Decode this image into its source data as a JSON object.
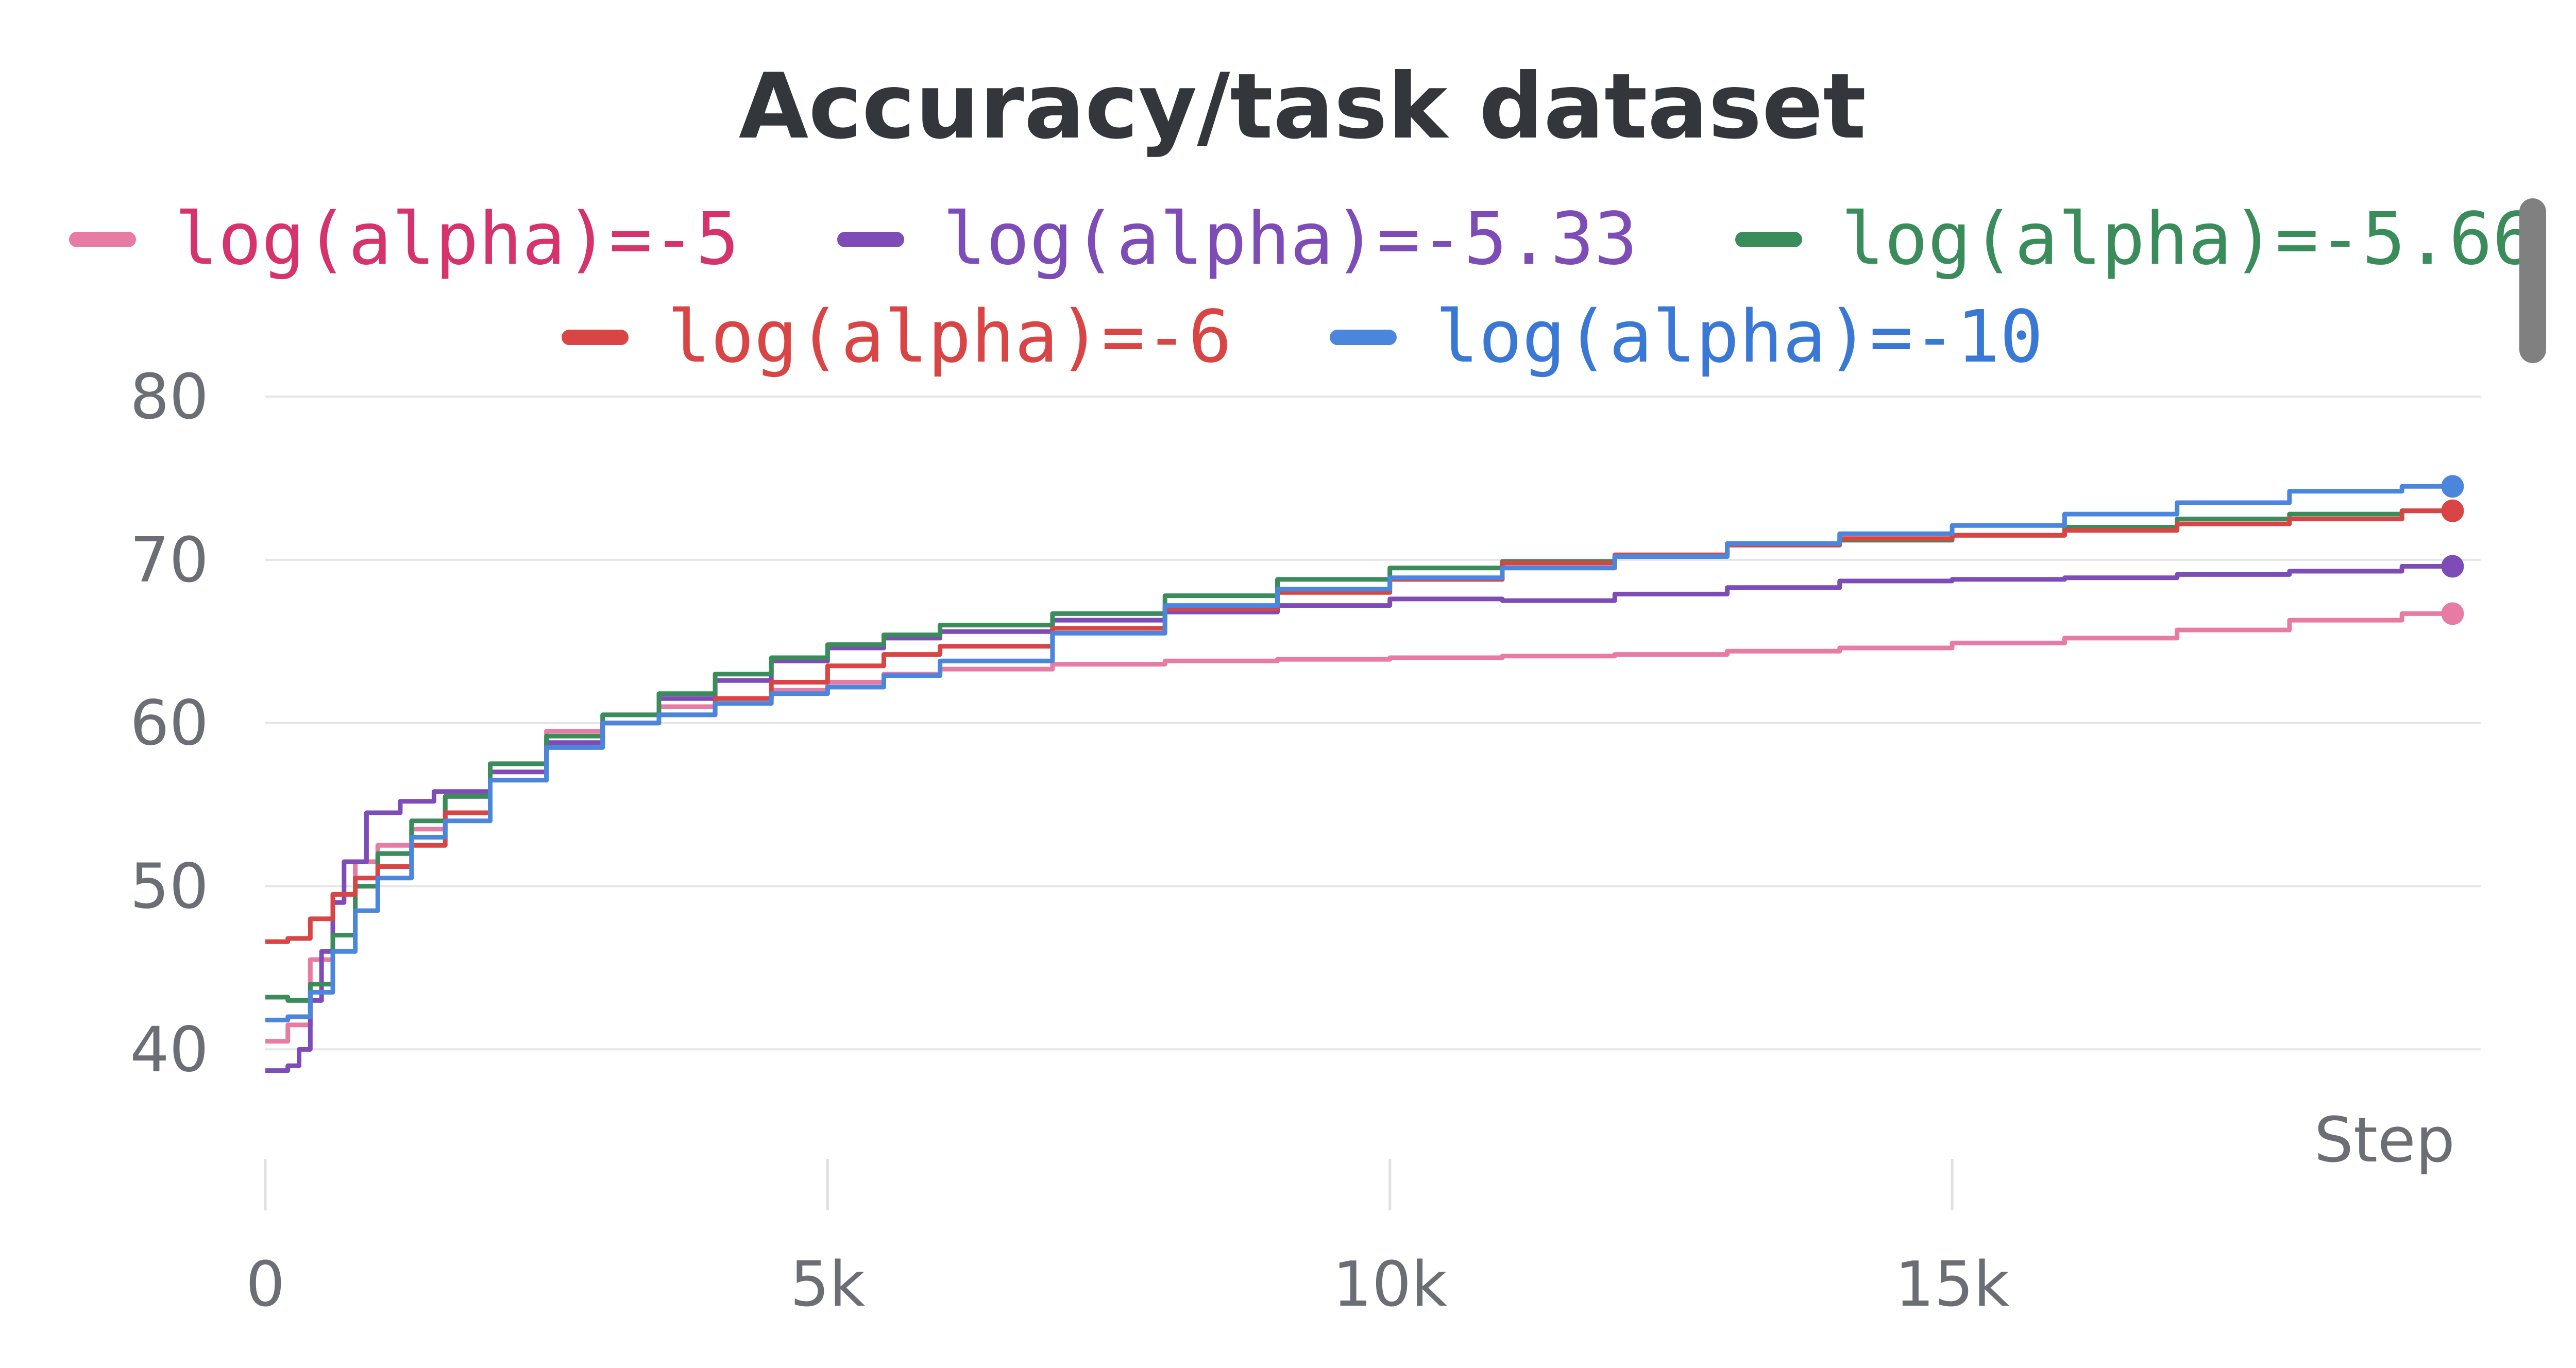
{
  "chart_data": {
    "type": "line",
    "title": "Accuracy/task dataset",
    "xlabel": "Step",
    "ylabel": "",
    "xlim": [
      0,
      19700
    ],
    "ylim": [
      35.5,
      80
    ],
    "x_ticks": [
      0,
      5000,
      10000,
      15000
    ],
    "x_tick_labels": [
      "0",
      "5k",
      "10k",
      "15k"
    ],
    "y_ticks": [
      40,
      50,
      60,
      70,
      80
    ],
    "y_tick_labels": [
      "40",
      "50",
      "60",
      "70",
      "80"
    ],
    "grid": true,
    "legend_position": "top",
    "series": [
      {
        "name": "log(alpha)=-5",
        "color": "#e87ba4",
        "label_color": "#d6336c",
        "x": [
          0,
          200,
          400,
          600,
          800,
          1000,
          1300,
          1600,
          2000,
          2500,
          3000,
          3500,
          4000,
          4500,
          5000,
          5500,
          6000,
          7000,
          8000,
          9000,
          10000,
          11000,
          12000,
          13000,
          14000,
          15000,
          16000,
          17000,
          18000,
          19000
        ],
        "y": [
          40.5,
          41.5,
          45.5,
          49.5,
          51.5,
          52.5,
          53.5,
          55.5,
          57.5,
          59.5,
          60.5,
          61.0,
          61.5,
          62.0,
          62.5,
          63.0,
          63.3,
          63.6,
          63.8,
          63.9,
          64.0,
          64.1,
          64.2,
          64.4,
          64.6,
          64.9,
          65.2,
          65.7,
          66.3,
          66.7
        ]
      },
      {
        "name": "log(alpha)=-5.33",
        "color": "#7e4cb7",
        "label_color": "#7e4cb7",
        "x": [
          0,
          200,
          300,
          400,
          500,
          600,
          700,
          900,
          1200,
          1500,
          2000,
          2500,
          3000,
          3500,
          4000,
          4500,
          5000,
          5500,
          6000,
          7000,
          8000,
          9000,
          10000,
          11000,
          12000,
          13000,
          14000,
          15000,
          16000,
          17000,
          18000,
          19000
        ],
        "y": [
          38.7,
          39.0,
          40.0,
          43.0,
          46.0,
          49.0,
          51.5,
          54.5,
          55.2,
          55.8,
          57.0,
          58.8,
          60.0,
          61.5,
          62.6,
          63.8,
          64.6,
          65.2,
          65.6,
          66.3,
          66.8,
          67.2,
          67.6,
          67.5,
          67.9,
          68.3,
          68.7,
          68.8,
          68.9,
          69.1,
          69.3,
          69.6
        ]
      },
      {
        "name": "log(alpha)=-5.66",
        "color": "#3a8d5a",
        "label_color": "#3a8d5a",
        "x": [
          0,
          200,
          400,
          600,
          800,
          1000,
          1300,
          1600,
          2000,
          2500,
          3000,
          3500,
          4000,
          4500,
          5000,
          5500,
          6000,
          7000,
          8000,
          9000,
          10000,
          11000,
          12000,
          13000,
          14000,
          15000,
          16000,
          17000,
          18000,
          19000
        ],
        "y": [
          43.2,
          43.0,
          44.0,
          47.0,
          50.0,
          52.0,
          54.0,
          55.5,
          57.5,
          59.2,
          60.5,
          61.8,
          63.0,
          64.0,
          64.8,
          65.4,
          66.0,
          66.7,
          67.8,
          68.8,
          69.5,
          69.9,
          70.2,
          70.9,
          71.2,
          71.5,
          72.0,
          72.5,
          72.8,
          73.0
        ]
      },
      {
        "name": "log(alpha)=-6",
        "color": "#d94444",
        "label_color": "#d94444",
        "x": [
          0,
          200,
          400,
          600,
          800,
          1000,
          1300,
          1600,
          2000,
          2500,
          3000,
          3500,
          4000,
          4500,
          5000,
          5500,
          6000,
          7000,
          8000,
          9000,
          10000,
          11000,
          12000,
          13000,
          14000,
          15000,
          16000,
          17000,
          18000,
          19000
        ],
        "y": [
          46.6,
          46.8,
          48.0,
          49.5,
          50.5,
          51.2,
          52.5,
          54.5,
          56.5,
          58.5,
          60.0,
          60.5,
          61.5,
          62.5,
          63.5,
          64.2,
          64.7,
          65.8,
          67.0,
          68.0,
          68.8,
          69.8,
          70.3,
          70.9,
          71.3,
          71.5,
          71.8,
          72.2,
          72.5,
          73.0
        ]
      },
      {
        "name": "log(alpha)=-10",
        "color": "#4a87dc",
        "label_color": "#3a78d6",
        "x": [
          0,
          200,
          400,
          600,
          800,
          1000,
          1300,
          1600,
          2000,
          2500,
          3000,
          3500,
          4000,
          4500,
          5000,
          5500,
          6000,
          7000,
          8000,
          9000,
          10000,
          11000,
          12000,
          13000,
          14000,
          15000,
          16000,
          17000,
          18000,
          19000
        ],
        "y": [
          41.8,
          42.0,
          43.5,
          46.0,
          48.5,
          50.5,
          53.0,
          54.0,
          56.5,
          58.5,
          60.0,
          60.5,
          61.2,
          61.8,
          62.2,
          62.9,
          63.8,
          65.5,
          67.2,
          68.2,
          68.9,
          69.5,
          70.2,
          71.0,
          71.6,
          72.1,
          72.8,
          73.5,
          74.2,
          74.5
        ]
      }
    ],
    "end_markers": [
      {
        "series": "log(alpha)=-5",
        "y": 66.7
      },
      {
        "series": "log(alpha)=-5.33",
        "y": 69.6
      },
      {
        "series": "log(alpha)=-5.66",
        "y": 73.0
      },
      {
        "series": "log(alpha)=-6",
        "y": 73.0
      },
      {
        "series": "log(alpha)=-10",
        "y": 74.5
      }
    ]
  },
  "ui": {
    "scrollbar": true
  }
}
